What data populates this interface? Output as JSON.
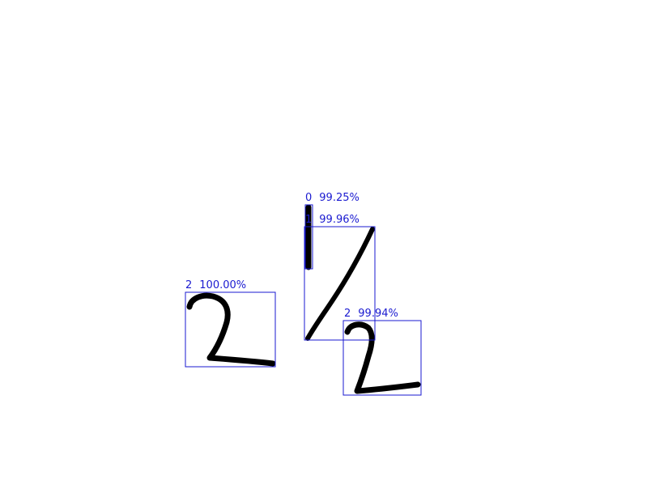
{
  "colors": {
    "background": "#ffffff",
    "box": "#1a1ad0",
    "label": "#1a1ad0",
    "ink": "#000000"
  },
  "detections": [
    {
      "digit": "0",
      "confidence": "99.25%"
    },
    {
      "digit": "1",
      "confidence": "99.96%"
    },
    {
      "digit": "2",
      "confidence": "100.00%"
    },
    {
      "digit": "2",
      "confidence": "99.94%"
    }
  ]
}
